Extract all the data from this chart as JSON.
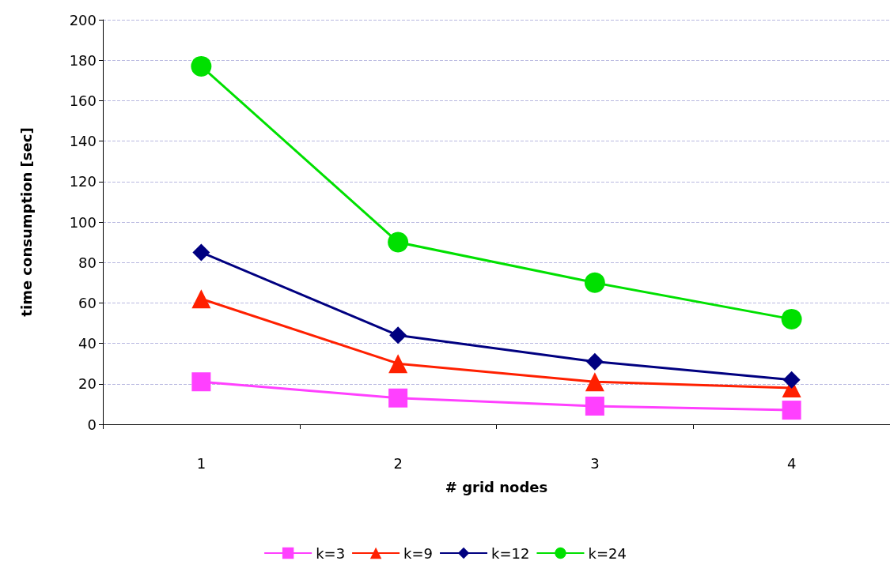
{
  "chart_data": {
    "type": "line",
    "xlabel": "# grid nodes",
    "ylabel": "time consumption [sec]",
    "categories": [
      "1",
      "2",
      "3",
      "4"
    ],
    "series": [
      {
        "name": "k=3",
        "color": "#ff40ff",
        "marker": "square",
        "values": [
          21,
          13,
          9,
          7
        ]
      },
      {
        "name": "k=9",
        "color": "#ff2000",
        "marker": "triangle",
        "values": [
          62,
          30,
          21,
          18
        ]
      },
      {
        "name": "k=12",
        "color": "#000080",
        "marker": "diamond",
        "values": [
          85,
          44,
          31,
          22
        ]
      },
      {
        "name": "k=24",
        "color": "#00e000",
        "marker": "circle",
        "values": [
          177,
          90,
          70,
          52
        ]
      }
    ],
    "ylim": [
      0,
      200
    ],
    "yticks": [
      0,
      20,
      40,
      60,
      80,
      100,
      120,
      140,
      160,
      180,
      200
    ],
    "grid": "y",
    "legend": "bottom",
    "line_style": "solid"
  }
}
